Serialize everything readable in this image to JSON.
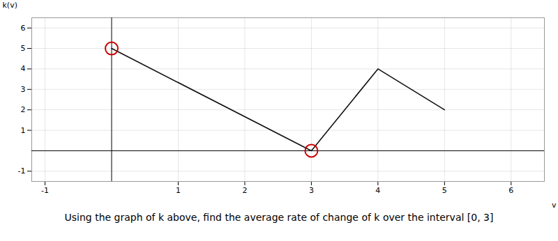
{
  "chart_data": {
    "type": "line",
    "caption": "Using the graph of k above, find the average rate of change of k over the interval [0, 3]",
    "xlabel": "v",
    "ylabel": "k(v)",
    "x": [
      0,
      3,
      4,
      5
    ],
    "values": [
      5,
      0,
      4,
      2
    ],
    "color": "#111111",
    "highlighted_points": {
      "color": "#cc0000",
      "points": [
        [
          0,
          5
        ],
        [
          3,
          0
        ]
      ]
    },
    "xlim": [
      -1.2,
      6.5
    ],
    "ylim": [
      -1.5,
      6.5
    ],
    "xticks": [
      -1,
      1,
      2,
      3,
      4,
      5,
      6
    ],
    "yticks": [
      -1,
      1,
      2,
      3,
      4,
      5,
      6
    ],
    "grid": true
  }
}
